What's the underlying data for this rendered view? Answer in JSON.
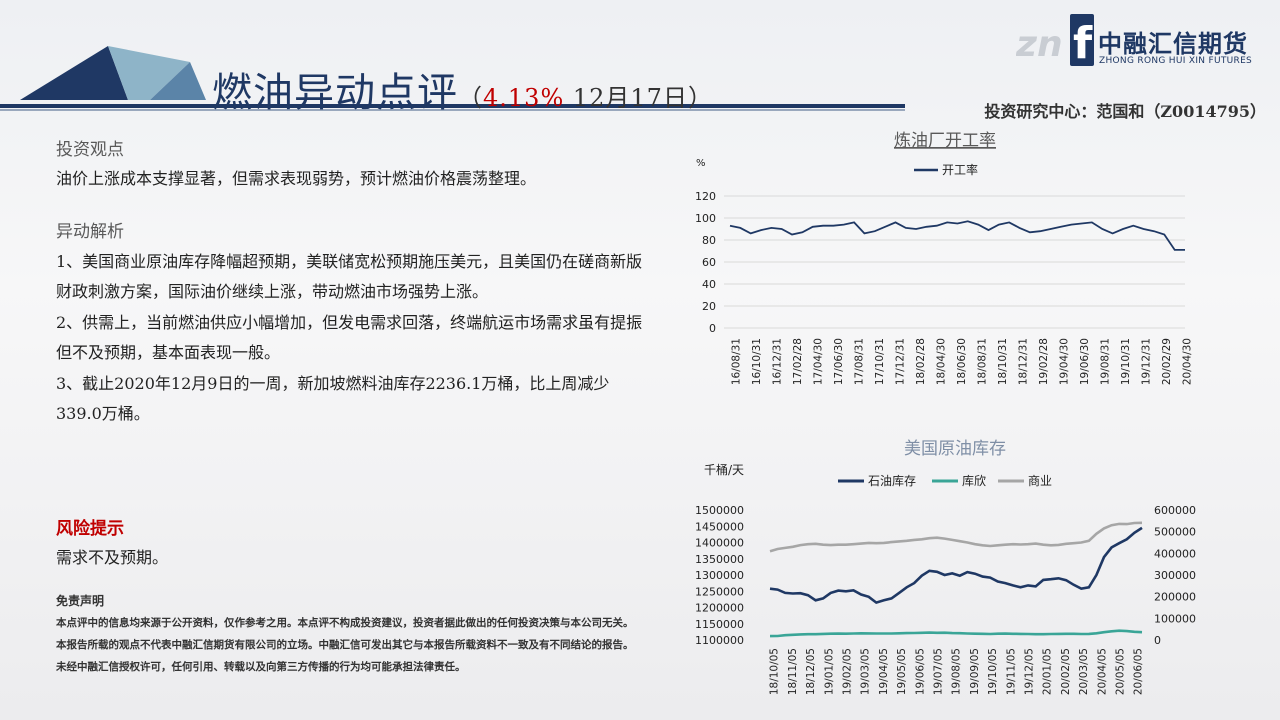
{
  "header": {
    "title": "燃油异动点评",
    "paren_open": "（",
    "pct": "4.13%",
    "date": " 12月17日",
    "paren_close": "）",
    "author": "投资研究中心：范国和（Z0014795）"
  },
  "logo": {
    "name_cn": "中融汇信期货",
    "name_en": "ZHONG RONG HUI XIN FUTURES"
  },
  "view": {
    "title": "投资观点",
    "text": "油价上涨成本支撑显著，但需求表现弱势，预计燃油价格震荡整理。"
  },
  "analysis": {
    "title": "异动解析",
    "p1": "1、美国商业原油库存降幅超预期，美联储宽松预期施压美元，且美国仍在磋商新版财政刺激方案，国际油价继续上涨，带动燃油市场强势上涨。",
    "p2": "2、供需上，当前燃油供应小幅增加，但发电需求回落，终端航运市场需求虽有提振但不及预期，基本面表现一般。",
    "p3": "3、截止2020年12月9日的一周，新加坡燃料油库存2236.1万桶，比上周减少339.0万桶。"
  },
  "risk": {
    "title": "风险提示",
    "text": "需求不及预期。"
  },
  "disclaimer": {
    "title": "免责声明",
    "text": "本点评中的信息均来源于公开资料，仅作参考之用。本点评不构成投资建议，投资者据此做出的任何投资决策与本公司无关。本报告所载的观点不代表中融汇信期货有限公司的立场。中融汇信可发出其它与本报告所载资料不一致及有不同结论的报告。未经中融汇信授权许可，任何引用、转载以及向第三方传播的行为均可能承担法律责任。"
  },
  "chart_data": [
    {
      "type": "line",
      "title": "炼油厂开工率",
      "ylabel": "%",
      "ylim": [
        0,
        120
      ],
      "yticks": [
        0,
        20,
        40,
        60,
        80,
        100,
        120
      ],
      "grid": true,
      "legend": "top",
      "xticks": [
        "16/08/31",
        "16/10/31",
        "16/12/31",
        "17/02/28",
        "17/04/30",
        "17/06/30",
        "17/08/31",
        "17/10/31",
        "17/12/31",
        "18/02/28",
        "18/04/30",
        "18/06/30",
        "18/08/31",
        "18/10/31",
        "18/12/31",
        "19/02/28",
        "19/04/30",
        "19/06/30",
        "19/08/31",
        "19/10/31",
        "19/12/31",
        "20/02/29",
        "20/04/30"
      ],
      "series": [
        {
          "name": "开工率",
          "color": "#1f3864",
          "values": [
            93,
            91,
            86,
            89,
            91,
            90,
            85,
            87,
            92,
            93,
            93,
            94,
            96,
            86,
            88,
            92,
            96,
            91,
            90,
            92,
            93,
            96,
            95,
            97,
            94,
            89,
            94,
            96,
            91,
            87,
            88,
            90,
            92,
            94,
            95,
            96,
            90,
            86,
            90,
            93,
            90,
            88,
            85,
            71,
            71
          ]
        }
      ]
    },
    {
      "type": "line",
      "title": "美国原油库存",
      "ylabel": "千桶/天",
      "ylim": [
        1100000,
        1500000
      ],
      "yticks": [
        1100000,
        1150000,
        1200000,
        1250000,
        1300000,
        1350000,
        1400000,
        1450000,
        1500000
      ],
      "y2lim": [
        0,
        600000
      ],
      "y2ticks": [
        0,
        100000,
        200000,
        300000,
        400000,
        500000,
        600000
      ],
      "grid": false,
      "legend": "top",
      "xticks": [
        "18/10/05",
        "18/11/05",
        "18/12/05",
        "19/01/05",
        "19/02/05",
        "19/03/05",
        "19/04/05",
        "19/05/05",
        "19/06/05",
        "19/07/05",
        "19/08/05",
        "19/09/05",
        "19/10/05",
        "19/11/05",
        "19/12/05",
        "20/01/05",
        "20/02/05",
        "20/03/05",
        "20/04/05",
        "20/05/05",
        "20/06/05"
      ],
      "series": [
        {
          "name": "石油库存",
          "axis": "left",
          "color": "#1f3864",
          "values": [
            1258000,
            1255000,
            1245000,
            1243000,
            1244000,
            1238000,
            1222000,
            1228000,
            1245000,
            1252000,
            1250000,
            1253000,
            1240000,
            1233000,
            1215000,
            1222000,
            1228000,
            1245000,
            1262000,
            1275000,
            1298000,
            1313000,
            1310000,
            1300000,
            1305000,
            1298000,
            1309000,
            1304000,
            1295000,
            1292000,
            1280000,
            1275000,
            1268000,
            1262000,
            1268000,
            1265000,
            1285000,
            1287000,
            1290000,
            1284000,
            1270000,
            1258000,
            1262000,
            1300000,
            1355000,
            1385000,
            1398000,
            1410000,
            1430000,
            1445000
          ]
        },
        {
          "name": "库欣",
          "axis": "right",
          "color": "#3aa597",
          "values": [
            18000,
            18500,
            22000,
            24000,
            26000,
            27000,
            27000,
            28000,
            29000,
            29500,
            29000,
            30000,
            31000,
            30500,
            30000,
            30000,
            30000,
            31000,
            32000,
            32500,
            33000,
            34000,
            33000,
            33500,
            32000,
            31500,
            30000,
            29000,
            28500,
            27500,
            29000,
            29500,
            28500,
            28000,
            27500,
            27000,
            27000,
            27500,
            28000,
            28500,
            28500,
            27500,
            28000,
            31000,
            36000,
            40000,
            43000,
            41000,
            38000,
            36000
          ]
        },
        {
          "name": "商业",
          "axis": "right",
          "color": "#a6a6a6",
          "values": [
            410000,
            420000,
            425000,
            430000,
            438000,
            442000,
            444000,
            440000,
            438000,
            440000,
            440000,
            442000,
            445000,
            448000,
            447000,
            448000,
            452000,
            455000,
            458000,
            462000,
            465000,
            470000,
            472000,
            468000,
            462000,
            456000,
            450000,
            442000,
            437000,
            434000,
            437000,
            440000,
            442000,
            441000,
            442000,
            445000,
            440000,
            437000,
            439000,
            444000,
            447000,
            450000,
            458000,
            490000,
            515000,
            530000,
            536000,
            535000,
            540000,
            541000
          ]
        }
      ]
    }
  ]
}
